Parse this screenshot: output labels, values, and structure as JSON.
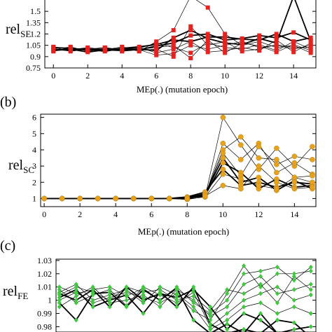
{
  "figure": {
    "panel_labels": [
      "(b)",
      "(c)"
    ]
  },
  "colors": {
    "se_marker": "#e8201e",
    "sc_marker": "#e8a21a",
    "fe_marker": "#3ec93e",
    "line": "#000000"
  },
  "chart_data": [
    {
      "type": "line",
      "panel": "a",
      "marker": "square",
      "ylabel": "rel",
      "ylabel_sub": "SE",
      "xlabel": "MEp(.) (mutation epoch)",
      "xlim": [
        -0.5,
        15.3
      ],
      "ylim": [
        0.75,
        1.65
      ],
      "xticks": [
        0,
        2,
        4,
        6,
        8,
        10,
        12,
        14
      ],
      "yticks": [
        0.75,
        0.9,
        1.05,
        1.2,
        1.35,
        1.5
      ],
      "ytick_labels": [
        "0.75",
        "0.9",
        "1.05",
        "1.2",
        "1.35",
        "1.5"
      ],
      "series": [
        {
          "bold": true,
          "values": [
            1.02,
            1.01,
            0.99,
            1.0,
            1.0,
            0.99,
            1.04,
            1.08,
            1.18,
            1.2,
            1.12,
            1.14,
            1.18,
            1.15,
            1.22,
            1.12
          ]
        },
        {
          "bold": true,
          "values": [
            1.0,
            0.98,
            1.0,
            0.97,
            1.01,
            1.03,
            1.06,
            1.12,
            1.1,
            1.16,
            1.16,
            1.13,
            1.12,
            1.2,
            1.1,
            1.15
          ]
        },
        {
          "bold": true,
          "values": [
            0.98,
            1.0,
            0.96,
            0.99,
            0.98,
            1.0,
            0.98,
            1.15,
            1.25,
            1.14,
            1.08,
            1.06,
            1.14,
            1.08,
            1.7,
            1.1
          ]
        },
        {
          "bold": false,
          "values": [
            1.01,
            0.97,
            1.0,
            1.02,
            0.97,
            0.99,
            0.92,
            0.94,
            1.05,
            1.0,
            1.05,
            1.1,
            1.02,
            1.05,
            1.0,
            1.05
          ]
        },
        {
          "bold": false,
          "values": [
            0.97,
            1.02,
            0.98,
            1.0,
            1.0,
            1.01,
            1.08,
            1.02,
            0.95,
            1.08,
            1.02,
            1.0,
            1.06,
            0.98,
            1.1,
            1.0
          ]
        },
        {
          "bold": false,
          "values": [
            1.03,
            1.0,
            1.01,
            0.98,
            1.02,
            0.97,
            1.1,
            1.25,
            1.7,
            1.55,
            1.2,
            1.05,
            1.1,
            1.02,
            1.05,
            0.95
          ]
        },
        {
          "bold": false,
          "values": [
            0.99,
            1.03,
            0.97,
            1.01,
            1.0,
            1.02,
            0.95,
            1.0,
            1.1,
            0.96,
            0.98,
            1.02,
            0.98,
            1.12,
            0.96,
            1.08
          ]
        },
        {
          "bold": false,
          "values": [
            1.0,
            0.99,
            1.02,
            0.99,
            1.03,
            0.98,
            1.0,
            0.9,
            1.3,
            1.05,
            1.1,
            0.97,
            1.0,
            1.06,
            1.02,
            1.02
          ]
        },
        {
          "bold": false,
          "values": [
            1.02,
            1.0,
            0.99,
            1.02,
            0.99,
            1.0,
            1.02,
            1.05,
            0.88,
            1.12,
            0.95,
            1.08,
            1.04,
            0.96,
            1.06,
            0.98
          ]
        }
      ]
    },
    {
      "type": "line",
      "panel": "b",
      "marker": "circle",
      "ylabel": "rel",
      "ylabel_sub": "SC",
      "xlabel": "MEp(.) (mutation epoch)",
      "xlim": [
        -0.2,
        15.2
      ],
      "ylim": [
        0.5,
        6.2
      ],
      "xticks": [
        0,
        2,
        4,
        6,
        8,
        10,
        12,
        14
      ],
      "yticks": [
        1,
        2,
        3,
        4,
        5,
        6
      ],
      "ytick_labels": [
        "1",
        "2",
        "3",
        "4",
        "5",
        "6"
      ],
      "series": [
        {
          "bold": true,
          "values": [
            1,
            1,
            1,
            1,
            1,
            1,
            1,
            1,
            1.05,
            1.3,
            3.5,
            2.0,
            2.3,
            1.5,
            2.1,
            1.6
          ]
        },
        {
          "bold": true,
          "values": [
            1,
            1,
            1,
            1,
            1,
            1,
            1,
            1,
            1.0,
            1.2,
            3.2,
            2.6,
            1.6,
            2.2,
            1.7,
            1.8
          ]
        },
        {
          "bold": true,
          "values": [
            1,
            1,
            1,
            1,
            1,
            1,
            1,
            1,
            1.1,
            1.4,
            2.8,
            1.8,
            2.0,
            1.7,
            2.0,
            1.9
          ]
        },
        {
          "bold": false,
          "values": [
            1,
            1,
            1,
            1,
            1,
            1,
            1,
            1,
            0.95,
            1.1,
            6.0,
            4.3,
            2.8,
            4.1,
            3.0,
            4.2
          ]
        },
        {
          "bold": false,
          "values": [
            1,
            1,
            1,
            1,
            1,
            1,
            1,
            1,
            1.0,
            1.15,
            4.4,
            3.4,
            4.4,
            2.6,
            3.2,
            2.5
          ]
        },
        {
          "bold": false,
          "values": [
            1,
            1,
            1,
            1,
            1,
            1,
            1,
            1,
            0.95,
            1.2,
            4.0,
            4.8,
            3.5,
            3.4,
            2.3,
            2.4
          ]
        },
        {
          "bold": false,
          "values": [
            1,
            1,
            1,
            1,
            1,
            1,
            1,
            1,
            1.0,
            1.25,
            3.8,
            2.4,
            4.2,
            3.1,
            3.6,
            3.4
          ]
        },
        {
          "bold": false,
          "values": [
            1,
            1,
            1,
            1,
            1,
            1,
            1,
            1,
            1.05,
            1.1,
            2.5,
            2.2,
            1.8,
            1.6,
            2.3,
            2.0
          ]
        },
        {
          "bold": false,
          "values": [
            1,
            1,
            1,
            1,
            1,
            1,
            1,
            1,
            1.0,
            1.15,
            1.8,
            1.6,
            3.0,
            2.0,
            1.6,
            1.7
          ]
        }
      ]
    },
    {
      "type": "line",
      "panel": "c",
      "marker": "diamond",
      "ylabel": "rel",
      "ylabel_sub": "FE",
      "xlim": [
        -0.2,
        15.3
      ],
      "ylim": [
        0.976,
        1.031
      ],
      "yticks": [
        0.98,
        0.99,
        1.0,
        1.01,
        1.02,
        1.03
      ],
      "ytick_labels": [
        "0.98",
        "0.99",
        "1",
        "1.01",
        "1.02",
        "1.03"
      ],
      "series": [
        {
          "bold": true,
          "values": [
            1.005,
            1.0,
            1.008,
            0.995,
            1.01,
            1.0,
            1.005,
            1.002,
            1.008,
            0.995,
            0.978,
            0.99,
            0.985,
            0.975,
            0.972,
            0.975
          ]
        },
        {
          "bold": true,
          "values": [
            0.998,
            0.985,
            1.005,
            1.006,
            0.995,
            1.008,
            1.0,
            1.009,
            0.985,
            0.975,
            0.982,
            0.975,
            0.99,
            0.975,
            0.978,
            0.98
          ]
        },
        {
          "bold": true,
          "values": [
            1.002,
            1.008,
            0.995,
            1.0,
            1.004,
            0.99,
            1.006,
            0.995,
            1.01,
            0.982,
            0.975,
            0.978,
            0.975,
            0.985,
            0.983,
            0.972
          ]
        },
        {
          "bold": false,
          "values": [
            1.01,
            1.005,
            1.008,
            1.01,
            1.003,
            1.009,
            1.0,
            1.01,
            0.998,
            0.99,
            1.0,
            1.02,
            1.022,
            1.025,
            1.015,
            1.025
          ]
        },
        {
          "bold": false,
          "values": [
            1.006,
            1.012,
            1.0,
            1.004,
            1.008,
            0.998,
            1.01,
            1.004,
            0.992,
            0.985,
            1.005,
            1.026,
            1.01,
            1.02,
            1.02,
            1.022
          ]
        },
        {
          "bold": false,
          "values": [
            0.995,
            1.003,
            1.01,
            0.998,
            1.0,
            1.004,
            0.995,
            1.008,
            1.0,
            0.988,
            0.995,
            1.012,
            1.018,
            1.005,
            1.008,
            1.012
          ]
        },
        {
          "bold": false,
          "values": [
            1.008,
            0.998,
            1.004,
            1.008,
            0.996,
            1.01,
            1.004,
            0.998,
            1.006,
            0.98,
            0.99,
            1.0,
            1.005,
            1.01,
            1.0,
            1.004
          ]
        },
        {
          "bold": false,
          "values": [
            1.0,
            1.006,
            0.998,
            1.002,
            1.006,
            1.002,
            0.998,
            1.005,
            0.995,
            0.978,
            0.985,
            0.995,
            0.998,
            0.99,
            0.995,
            0.99
          ]
        },
        {
          "bold": false,
          "values": [
            1.004,
            1.01,
            1.006,
            1.0,
            1.01,
            1.006,
            1.008,
            1.0,
            1.003,
            0.992,
            1.008,
            1.005,
            1.012,
            0.998,
            1.018,
            1.008
          ]
        }
      ]
    }
  ]
}
